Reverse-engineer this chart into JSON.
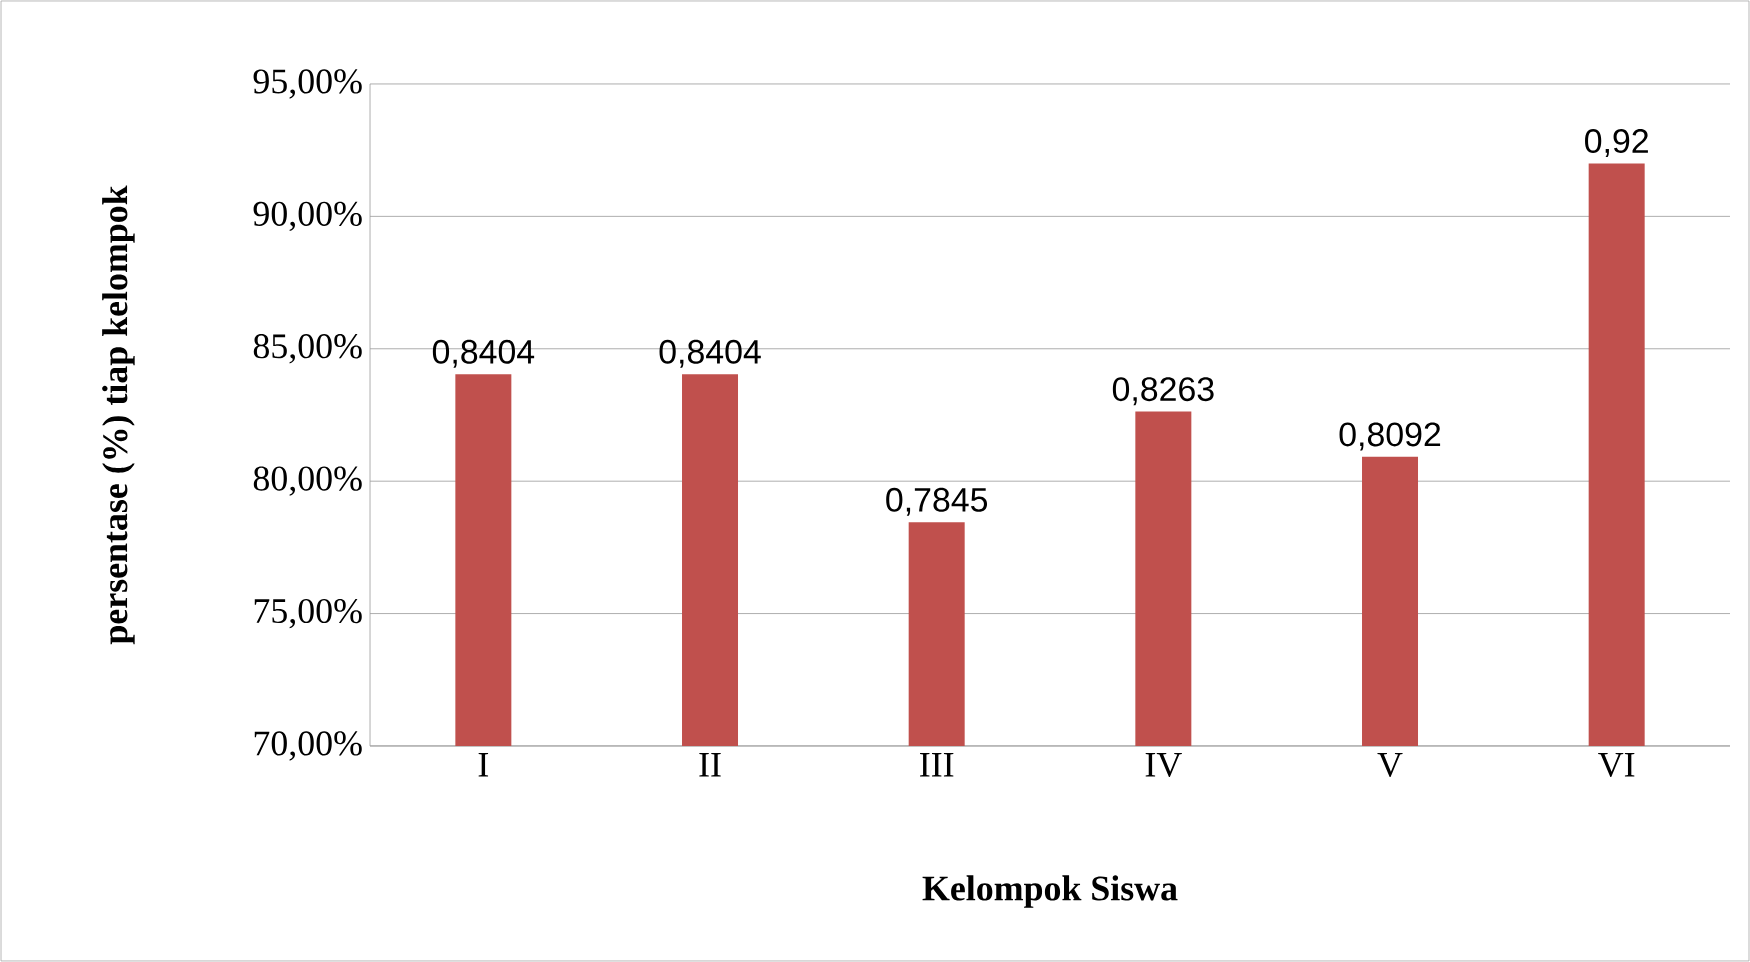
{
  "chart_data": {
    "type": "bar",
    "xlabel": "Kelompok Siswa",
    "ylabel": "persentase (%) tiap kelompok",
    "categories": [
      "I",
      "II",
      "III",
      "IV",
      "V",
      "VI"
    ],
    "values": [
      0.8404,
      0.8404,
      0.7845,
      0.8263,
      0.8092,
      0.92
    ],
    "value_labels": [
      "0,8404",
      "0,8404",
      "0,7845",
      "0,8263",
      "0,8092",
      "0,92"
    ],
    "color": "#c0504d",
    "ylim": [
      0.7,
      0.95
    ],
    "yticks": [
      {
        "value": 0.7,
        "label": "70,00%"
      },
      {
        "value": 0.75,
        "label": "75,00%"
      },
      {
        "value": 0.8,
        "label": "80,00%"
      },
      {
        "value": 0.85,
        "label": "85,00%"
      },
      {
        "value": 0.9,
        "label": "90,00%"
      },
      {
        "value": 0.95,
        "label": "95,00%"
      }
    ],
    "grid": "y"
  }
}
